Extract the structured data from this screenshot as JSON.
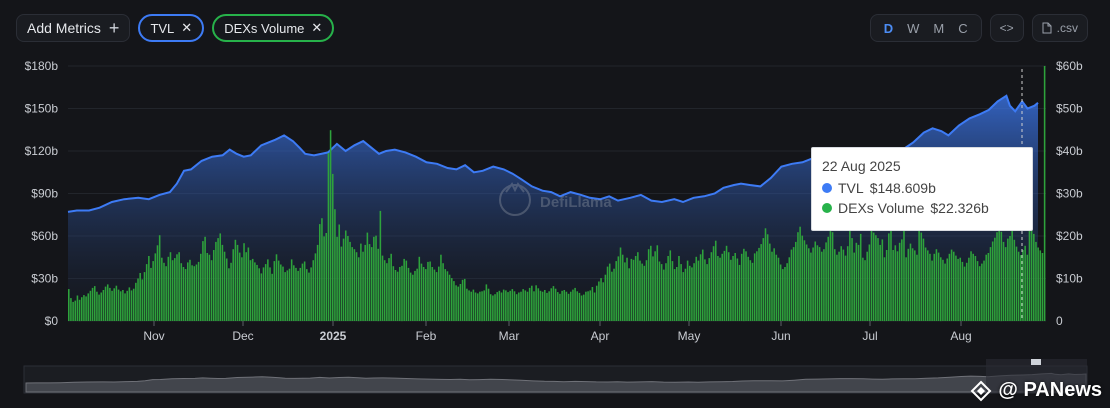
{
  "toolbar": {
    "add_metrics_label": "Add Metrics",
    "chips": [
      {
        "label": "TVL",
        "color": "#3d7bf5"
      },
      {
        "label": "DEXs Volume",
        "color": "#27b24a"
      }
    ],
    "periods": [
      "D",
      "W",
      "M",
      "C"
    ],
    "active_period": "D",
    "embed_label": "<>",
    "csv_label": ".csv"
  },
  "tooltip": {
    "date": "22 Aug 2025",
    "tvl_label": "TVL",
    "tvl_value": "$148.609b",
    "dex_label": "DEXs Volume",
    "dex_value": "$22.326b"
  },
  "watermark": {
    "brand": "DefiLlama",
    "source": "@ PANews"
  },
  "chart_data": {
    "type": "area",
    "x_labels": [
      "Nov",
      "Dec",
      "2025",
      "Feb",
      "Mar",
      "Apr",
      "May",
      "Jun",
      "Jul",
      "Aug"
    ],
    "y_left": {
      "ticks": [
        "$0",
        "$30b",
        "$60b",
        "$90b",
        "$120b",
        "$150b",
        "$180b"
      ],
      "ylim": [
        0,
        180
      ]
    },
    "y_right": {
      "ticks": [
        "0",
        "$10b",
        "$20b",
        "$30b",
        "$40b",
        "$50b",
        "$60b"
      ],
      "ylim": [
        0,
        60
      ]
    },
    "series": [
      {
        "name": "TVL",
        "kind": "area",
        "axis": "left",
        "color": "#3d7bf5",
        "points": [
          [
            0,
            77
          ],
          [
            5,
            78
          ],
          [
            12,
            78
          ],
          [
            18,
            80
          ],
          [
            25,
            84
          ],
          [
            32,
            86
          ],
          [
            40,
            87
          ],
          [
            46,
            86
          ],
          [
            52,
            89
          ],
          [
            58,
            91
          ],
          [
            62,
            97
          ],
          [
            66,
            106
          ],
          [
            70,
            107
          ],
          [
            76,
            113
          ],
          [
            82,
            116
          ],
          [
            88,
            117
          ],
          [
            92,
            121
          ],
          [
            96,
            118
          ],
          [
            100,
            116
          ],
          [
            104,
            117
          ],
          [
            110,
            124
          ],
          [
            118,
            128
          ],
          [
            123,
            131
          ],
          [
            128,
            127
          ],
          [
            132,
            122
          ],
          [
            135,
            118
          ],
          [
            140,
            117
          ],
          [
            148,
            119
          ],
          [
            153,
            125
          ],
          [
            158,
            120
          ],
          [
            163,
            124
          ],
          [
            168,
            127
          ],
          [
            173,
            122
          ],
          [
            177,
            118
          ],
          [
            181,
            120
          ],
          [
            186,
            121
          ],
          [
            192,
            119
          ],
          [
            198,
            116
          ],
          [
            204,
            112
          ],
          [
            210,
            111
          ],
          [
            216,
            108
          ],
          [
            221,
            107
          ],
          [
            226,
            110
          ],
          [
            231,
            105
          ],
          [
            236,
            106
          ],
          [
            242,
            109
          ],
          [
            248,
            107
          ],
          [
            253,
            104
          ],
          [
            258,
            100
          ],
          [
            264,
            95
          ],
          [
            270,
            92
          ],
          [
            275,
            91
          ],
          [
            280,
            88
          ],
          [
            286,
            91
          ],
          [
            292,
            89
          ],
          [
            297,
            87
          ],
          [
            303,
            86
          ],
          [
            308,
            88
          ],
          [
            313,
            85
          ],
          [
            320,
            87
          ],
          [
            326,
            89
          ],
          [
            332,
            85
          ],
          [
            338,
            84
          ],
          [
            345,
            86
          ],
          [
            350,
            84
          ],
          [
            356,
            87
          ],
          [
            362,
            88
          ],
          [
            368,
            90
          ],
          [
            373,
            94
          ],
          [
            379,
            96
          ],
          [
            383,
            97
          ],
          [
            388,
            96
          ],
          [
            394,
            95
          ],
          [
            400,
            101
          ],
          [
            406,
            109
          ],
          [
            412,
            111
          ],
          [
            418,
            112
          ],
          [
            424,
            115
          ],
          [
            430,
            115
          ],
          [
            436,
            113
          ],
          [
            441,
            111
          ],
          [
            446,
            109
          ],
          [
            451,
            112
          ],
          [
            457,
            114
          ],
          [
            463,
            113
          ],
          [
            469,
            118
          ],
          [
            475,
            121
          ],
          [
            481,
            126
          ],
          [
            487,
            133
          ],
          [
            492,
            136
          ],
          [
            497,
            134
          ],
          [
            501,
            131
          ],
          [
            507,
            138
          ],
          [
            513,
            143
          ],
          [
            519,
            146
          ],
          [
            524,
            149
          ],
          [
            529,
            155
          ],
          [
            534,
            159
          ],
          [
            536,
            152
          ],
          [
            539,
            148
          ],
          [
            543,
            155
          ],
          [
            546,
            150
          ],
          [
            550,
            152
          ],
          [
            552,
            154
          ]
        ]
      },
      {
        "name": "DEXs Volume",
        "kind": "bar",
        "axis": "right",
        "color": "#2ea33c",
        "values": [
          7.5,
          5.4,
          4.5,
          4.8,
          6.0,
          5.0,
          5.6,
          6.1,
          5.8,
          6.5,
          7.1,
          7.8,
          8.2,
          6.9,
          6.2,
          6.7,
          7.3,
          8.1,
          8.6,
          7.8,
          7.1,
          7.7,
          8.3,
          7.4,
          7.0,
          7.3,
          6.5,
          7.1,
          7.9,
          7.2,
          7.6,
          9.0,
          10.0,
          11.3,
          9.8,
          11.5,
          13.4,
          15.3,
          12.5,
          14.1,
          15.9,
          17.8,
          20.2,
          14.9,
          13.7,
          12.9,
          15.1,
          16.2,
          14.3,
          14.8,
          15.7,
          16.2,
          13.6,
          12.7,
          12.2,
          13.8,
          14.4,
          13.1,
          12.9,
          13.3,
          13.9,
          15.8,
          18.8,
          19.8,
          16.0,
          15.6,
          14.3,
          16.7,
          18.6,
          19.5,
          20.6,
          17.9,
          16.3,
          14.7,
          12.4,
          13.7,
          16.9,
          19.1,
          17.9,
          16.1,
          15.0,
          18.3,
          16.2,
          17.3,
          14.3,
          14.6,
          13.8,
          13.2,
          12.4,
          11.2,
          12.6,
          13.4,
          14.5,
          12.6,
          11.1,
          14.1,
          15.7,
          14.2,
          13.3,
          12.8,
          11.5,
          11.9,
          12.3,
          14.5,
          13.1,
          12.5,
          11.8,
          12.5,
          13.5,
          14.0,
          12.2,
          11.4,
          12.6,
          14.3,
          15.9,
          17.9,
          22.8,
          24.2,
          19.9,
          20.7,
          39.5,
          44.9,
          34.6,
          26.3,
          19.8,
          22.7,
          17.5,
          19.4,
          21.3,
          20.0,
          18.6,
          17.4,
          16.9,
          16.2,
          15.0,
          18.2,
          16.3,
          17.9,
          20.8,
          18.1,
          17.4,
          19.8,
          20.1,
          17.0,
          25.9,
          15.4,
          14.3,
          13.6,
          14.8,
          15.8,
          12.9,
          12.0,
          11.6,
          12.7,
          13.0,
          14.6,
          14.2,
          12.5,
          11.4,
          10.9,
          11.8,
          12.3,
          15.1,
          13.5,
          12.7,
          12.2,
          13.9,
          14.0,
          12.7,
          12.1,
          11.5,
          12.8,
          15.6,
          13.6,
          12.2,
          11.7,
          10.9,
          10.1,
          9.4,
          8.4,
          8.1,
          8.7,
          9.7,
          9.9,
          7.6,
          7.2,
          6.9,
          7.4,
          6.7,
          6.5,
          6.9,
          7.0,
          7.2,
          8.6,
          7.6,
          6.3,
          6.0,
          6.3,
          6.8,
          7.1,
          6.7,
          7.4,
          7.2,
          6.8,
          7.1,
          7.5,
          7.0,
          6.3,
          6.7,
          6.9,
          7.5,
          7.2,
          6.9,
          7.8,
          8.3,
          7.0,
          8.4,
          7.7,
          7.1,
          6.9,
          7.3,
          6.6,
          7.0,
          7.7,
          8.2,
          7.6,
          6.8,
          6.4,
          7.1,
          7.3,
          6.9,
          6.4,
          6.9,
          7.4,
          7.8,
          7.0,
          6.6,
          6.0,
          6.2,
          6.9,
          7.0,
          7.2,
          8.0,
          6.7,
          8.3,
          9.3,
          10.1,
          9.1,
          10.9,
          12.8,
          13.5,
          11.6,
          12.3,
          14.1,
          15.2,
          17.3,
          15.6,
          13.8,
          14.9,
          12.4,
          14.6,
          14.4,
          15.3,
          16.2,
          14.2,
          13.5,
          13.0,
          14.3,
          16.9,
          17.7,
          15.2,
          16.4,
          17.8,
          14.0,
          13.4,
          12.1,
          13.6,
          15.3,
          16.6,
          14.1,
          12.2,
          12.7,
          15.3,
          13.4,
          11.5,
          12.3,
          14.2,
          13.0,
          12.6,
          13.6,
          15.1,
          14.2,
          15.7,
          16.8,
          14.5,
          13.4,
          14.8,
          16.2,
          17.6,
          18.9,
          15.3,
          14.9,
          15.8,
          16.5,
          17.7,
          16.2,
          14.4,
          15.3,
          16.0,
          14.7,
          13.2,
          15.8,
          17.0,
          16.4,
          15.1,
          14.3,
          13.7,
          15.9,
          16.4,
          17.2,
          18.1,
          19.5,
          21.8,
          20.4,
          18.2,
          16.3,
          17.1,
          15.6,
          14.9,
          13.3,
          12.2,
          12.7,
          13.6,
          15.0,
          16.8,
          17.4,
          18.6,
          20.9,
          22.2,
          20.1,
          19.0,
          18.0,
          17.1,
          16.1,
          17.3,
          18.7,
          17.8,
          17.4,
          16.3,
          16.9,
          18.5,
          19.8,
          23.6,
          20.9,
          16.9,
          15.6,
          16.3,
          17.6,
          16.8,
          15.4,
          17.6,
          21.6,
          19.5,
          16.1,
          18.4,
          17.9,
          20.5,
          14.9,
          14.3,
          16.3,
          18.0,
          21.5,
          20.8,
          20.2,
          19.5,
          17.9,
          19.2,
          15.0,
          16.7,
          20.6,
          21.7,
          16.7,
          17.8,
          16.4,
          18.4,
          19.2,
          21.3,
          15.0,
          17.0,
          18.2,
          17.1,
          16.6,
          15.6,
          22.3,
          20.8,
          19.4,
          17.3,
          16.6,
          15.8,
          14.2,
          15.8,
          16.9,
          16.1,
          15.0,
          14.4,
          13.5,
          14.7,
          15.8,
          16.8,
          16.3,
          15.4,
          14.6,
          14.9,
          13.9,
          12.8,
          13.7,
          14.9,
          16.4,
          15.8,
          15.3,
          14.1,
          12.9,
          13.5,
          14.2,
          15.6,
          16.0,
          17.4,
          18.7,
          19.6,
          20.9,
          22.8,
          21.0,
          18.6,
          17.4,
          19.4,
          20.0,
          21.3,
          19.1,
          17.5,
          16.3,
          15.5,
          16.7,
          17.7,
          15.6,
          22.3,
          23.8,
          20.5,
          18.6,
          17.3,
          16.6,
          16.0,
          60.0
        ]
      }
    ]
  }
}
